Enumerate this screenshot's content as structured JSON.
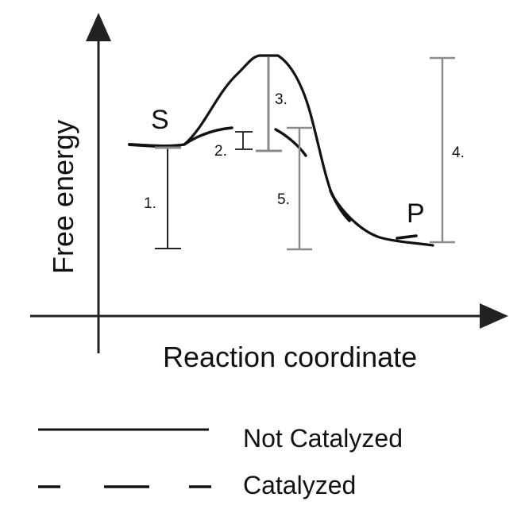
{
  "axes": {
    "y_label": "Free energy",
    "x_label": "Reaction coordinate"
  },
  "states": {
    "substrate": "S",
    "product": "P"
  },
  "intervals": [
    {
      "id": "1",
      "label": "1."
    },
    {
      "id": "2",
      "label": "2."
    },
    {
      "id": "3",
      "label": "3."
    },
    {
      "id": "4",
      "label": "4."
    },
    {
      "id": "5",
      "label": "5."
    }
  ],
  "legend": {
    "not_catalyzed": "Not Catalyzed",
    "catalyzed": "Catalyzed"
  },
  "colors": {
    "curve": "#111111",
    "interval_gray": "#8a8a8a",
    "axis": "#222222"
  }
}
